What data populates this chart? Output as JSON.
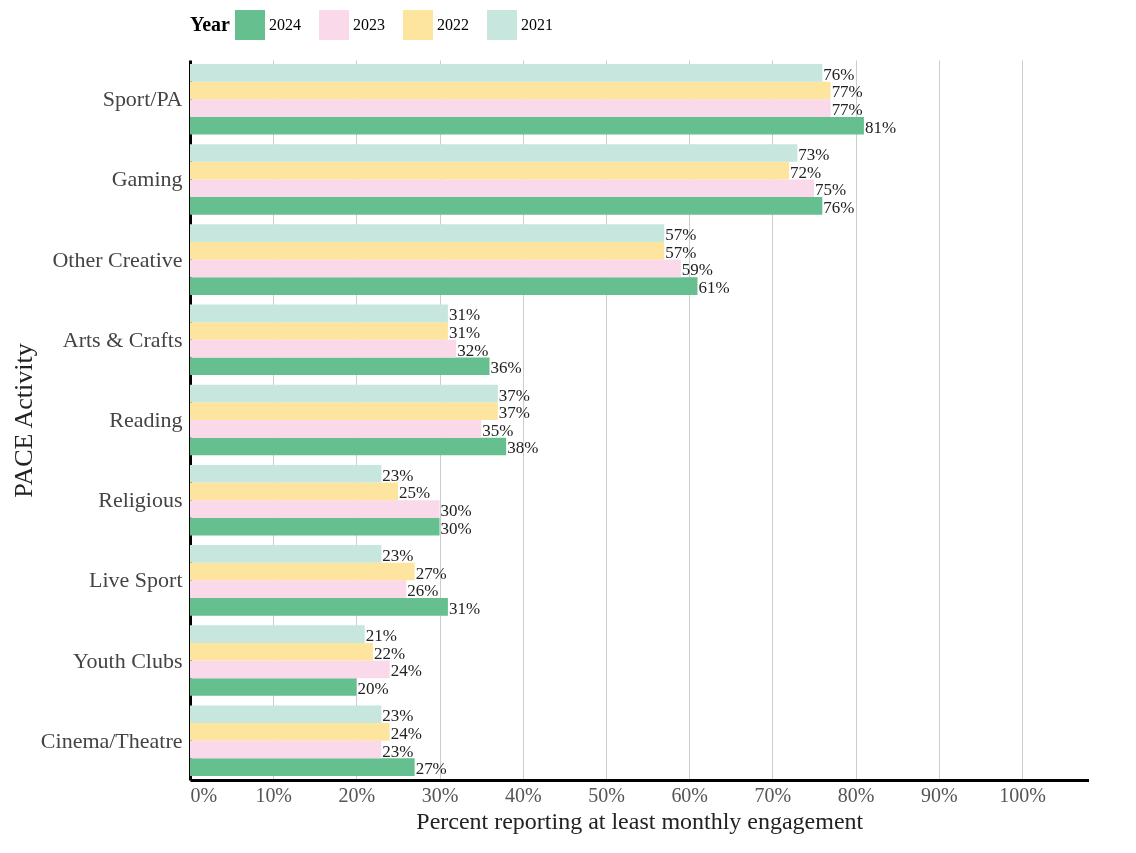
{
  "chart_data": {
    "type": "bar",
    "orientation": "horizontal",
    "xlabel": "Percent reporting at least monthly engagement",
    "ylabel": "PACE Activity",
    "legend_title": "Year",
    "legend": "top",
    "grid": "x",
    "categories": [
      "Sport/PA",
      "Gaming",
      "Other Creative",
      "Arts & Crafts",
      "Reading",
      "Religious",
      "Live Sport",
      "Youth Clubs",
      "Cinema/Theatre"
    ],
    "xlim": [
      0,
      108
    ],
    "xticks": [
      {
        "value": 0,
        "label": "0%"
      },
      {
        "value": 10,
        "label": "10%"
      },
      {
        "value": 20,
        "label": "20%"
      },
      {
        "value": 30,
        "label": "30%"
      },
      {
        "value": 40,
        "label": "40%"
      },
      {
        "value": 50,
        "label": "50%"
      },
      {
        "value": 60,
        "label": "60%"
      },
      {
        "value": 70,
        "label": "70%"
      },
      {
        "value": 80,
        "label": "80%"
      },
      {
        "value": 90,
        "label": "90%"
      },
      {
        "value": 100,
        "label": "100%"
      }
    ],
    "series": [
      {
        "name": "2024",
        "color": "#66bf8f",
        "values": [
          81,
          76,
          61,
          36,
          38,
          30,
          31,
          20,
          27
        ],
        "value_labels": [
          "81%",
          "76%",
          "61%",
          "36%",
          "38%",
          "30%",
          "31%",
          "20%",
          "27%"
        ]
      },
      {
        "name": "2023",
        "color": "#f9d9ea",
        "values": [
          77,
          75,
          59,
          32,
          35,
          30,
          26,
          24,
          23
        ],
        "value_labels": [
          "77%",
          "75%",
          "59%",
          "32%",
          "35%",
          "30%",
          "26%",
          "24%",
          "23%"
        ]
      },
      {
        "name": "2022",
        "color": "#fde5a0",
        "values": [
          77,
          72,
          57,
          31,
          37,
          25,
          27,
          22,
          24
        ],
        "value_labels": [
          "77%",
          "72%",
          "57%",
          "31%",
          "37%",
          "25%",
          "27%",
          "22%",
          "24%"
        ]
      },
      {
        "name": "2021",
        "color": "#c6e6de",
        "values": [
          76,
          73,
          57,
          31,
          37,
          23,
          23,
          21,
          23
        ],
        "value_labels": [
          "76%",
          "73%",
          "57%",
          "31%",
          "37%",
          "23%",
          "23%",
          "21%",
          "23%"
        ]
      }
    ]
  }
}
